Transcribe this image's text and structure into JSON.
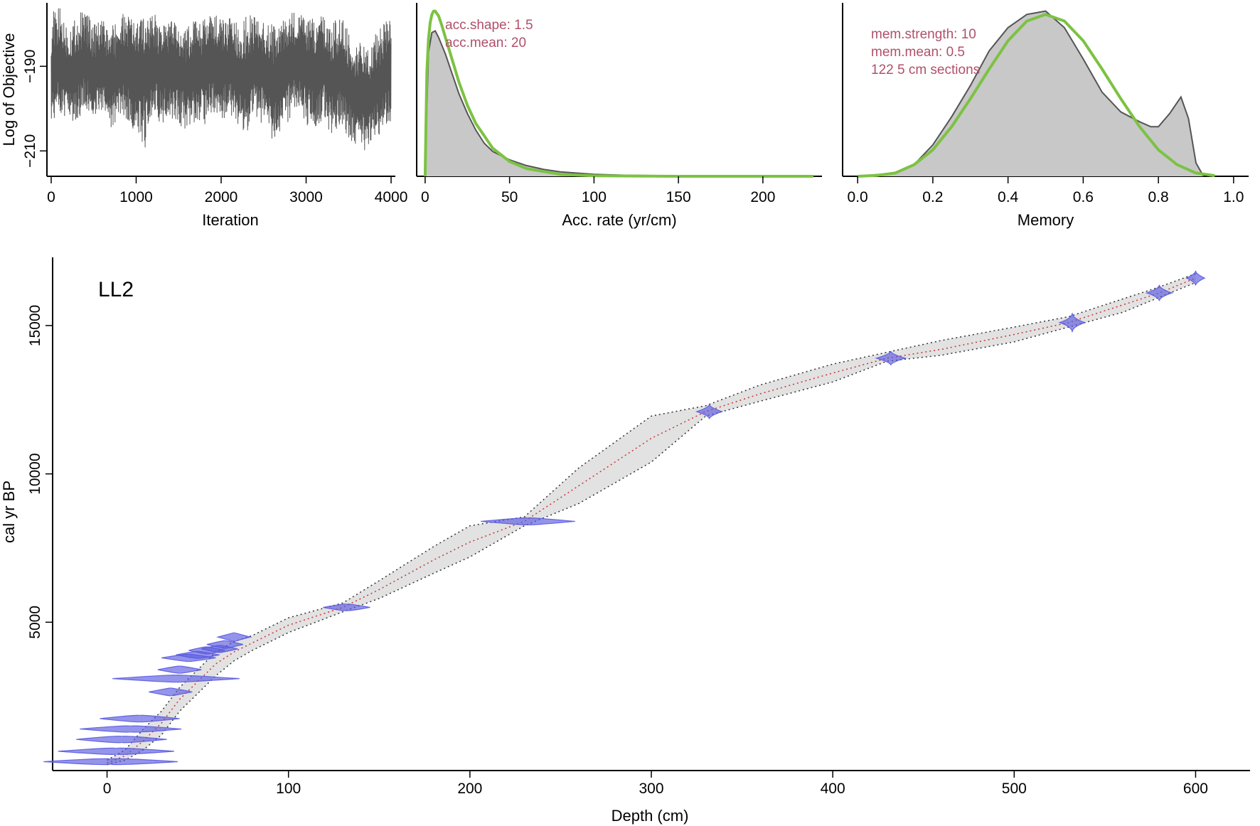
{
  "colors": {
    "trace": "#555555",
    "density_fill": "#c8c8c8",
    "density_line": "#555555",
    "prior": "#7cc242",
    "annotation": "#b0506a",
    "date_fill": "#5a5ae0",
    "median": "#cc3333",
    "envelope": "#333333",
    "band": "#999999"
  },
  "chart_data": [
    {
      "id": "iterations",
      "type": "line",
      "title": "",
      "xlabel": "Iteration",
      "ylabel": "Log of Objective",
      "xlim": [
        -50,
        4050
      ],
      "ylim": [
        -216,
        -175
      ],
      "xticks": [
        "0",
        "1000",
        "2000",
        "3000",
        "4000"
      ],
      "xtick_values": [
        0,
        1000,
        2000,
        3000,
        4000
      ],
      "yticks": [
        "−190",
        "−210"
      ],
      "ytick_values": [
        -190,
        -210
      ],
      "series": [
        {
          "x": [
            0,
            100,
            200,
            300,
            400,
            500,
            600,
            700,
            800,
            900,
            1000,
            1100,
            1200,
            1300,
            1400,
            1500,
            1600,
            1700,
            1800,
            1900,
            2000,
            2100,
            2200,
            2300,
            2400,
            2500,
            2600,
            2700,
            2800,
            2900,
            3000,
            3100,
            3200,
            3300,
            3400,
            3500,
            3600,
            3700,
            3800,
            3900,
            4000
          ],
          "y": [
            -192,
            -190,
            -193,
            -191,
            -189,
            -192,
            -190,
            -194,
            -191,
            -190,
            -193,
            -191,
            -189,
            -192,
            -190,
            -191,
            -193,
            -190,
            -192,
            -189,
            -191,
            -190,
            -192,
            -193,
            -190,
            -191,
            -194,
            -192,
            -190,
            -189,
            -191,
            -192,
            -190,
            -193,
            -191,
            -195,
            -197,
            -198,
            -196,
            -193,
            -191
          ],
          "high": [
            -177,
            -176,
            -180,
            -178,
            -176,
            -180,
            -179,
            -181,
            -178,
            -177,
            -179,
            -178,
            -177,
            -180,
            -179,
            -180,
            -181,
            -178,
            -179,
            -177,
            -179,
            -178,
            -180,
            -178,
            -177,
            -179,
            -180,
            -179,
            -178,
            -176,
            -178,
            -179,
            -178,
            -180,
            -178,
            -181,
            -184,
            -185,
            -183,
            -179,
            -178
          ],
          "low": [
            -203,
            -201,
            -204,
            -203,
            -200,
            -203,
            -201,
            -205,
            -202,
            -203,
            -206,
            -210,
            -201,
            -204,
            -202,
            -204,
            -205,
            -203,
            -204,
            -201,
            -203,
            -202,
            -204,
            -206,
            -202,
            -204,
            -208,
            -205,
            -203,
            -201,
            -204,
            -205,
            -203,
            -206,
            -204,
            -207,
            -209,
            -210,
            -208,
            -205,
            -203
          ]
        }
      ]
    },
    {
      "id": "acc_rate",
      "type": "area",
      "title": "",
      "xlabel": "Acc. rate (yr/cm)",
      "ylabel": "",
      "xlim": [
        -5,
        235
      ],
      "ylim": [
        0,
        1.05
      ],
      "xticks": [
        "0",
        "50",
        "100",
        "150",
        "200"
      ],
      "xtick_values": [
        0,
        50,
        100,
        150,
        200
      ],
      "annotations": [
        "acc.shape:  1.5",
        "acc.mean:  20"
      ],
      "series": [
        {
          "name": "posterior",
          "x": [
            0,
            2,
            4,
            6,
            8,
            12,
            16,
            20,
            25,
            30,
            35,
            40,
            50,
            60,
            70,
            80,
            100,
            120,
            150,
            200,
            230
          ],
          "y": [
            0.05,
            0.75,
            0.87,
            0.88,
            0.84,
            0.74,
            0.62,
            0.5,
            0.38,
            0.28,
            0.2,
            0.15,
            0.1,
            0.065,
            0.042,
            0.027,
            0.012,
            0.006,
            0.002,
            0.0005,
            0.0002
          ]
        },
        {
          "name": "prior",
          "x": [
            0,
            1,
            2,
            3,
            4,
            5,
            6,
            8,
            10,
            12,
            15,
            20,
            25,
            30,
            40,
            50,
            60,
            80,
            100,
            150,
            230
          ],
          "y": [
            0.0,
            0.63,
            0.83,
            0.93,
            0.98,
            1.0,
            1.0,
            0.97,
            0.91,
            0.84,
            0.74,
            0.57,
            0.43,
            0.32,
            0.17,
            0.09,
            0.047,
            0.012,
            0.003,
            0.0001,
            0.0
          ]
        }
      ]
    },
    {
      "id": "memory",
      "type": "area",
      "title": "",
      "xlabel": "Memory",
      "ylabel": "",
      "xlim": [
        -0.04,
        1.04
      ],
      "ylim": [
        0,
        1.05
      ],
      "xticks": [
        "0.0",
        "0.2",
        "0.4",
        "0.6",
        "0.8",
        "1.0"
      ],
      "xtick_values": [
        0,
        0.2,
        0.4,
        0.6,
        0.8,
        1.0
      ],
      "annotations": [
        "mem.strength: 10",
        "mem.mean: 0.5",
        "122 5 cm sections"
      ],
      "series": [
        {
          "name": "posterior",
          "x": [
            0,
            0.1,
            0.15,
            0.2,
            0.25,
            0.3,
            0.35,
            0.4,
            0.45,
            0.5,
            0.55,
            0.6,
            0.65,
            0.7,
            0.75,
            0.78,
            0.8,
            0.83,
            0.86,
            0.88,
            0.9,
            0.92
          ],
          "y": [
            0,
            0.02,
            0.07,
            0.19,
            0.36,
            0.55,
            0.76,
            0.9,
            0.98,
            1.0,
            0.9,
            0.71,
            0.51,
            0.39,
            0.33,
            0.3,
            0.3,
            0.38,
            0.48,
            0.35,
            0.08,
            0.0
          ]
        },
        {
          "name": "prior",
          "x": [
            0,
            0.05,
            0.1,
            0.15,
            0.2,
            0.25,
            0.3,
            0.35,
            0.4,
            0.45,
            0.5,
            0.55,
            0.6,
            0.65,
            0.7,
            0.75,
            0.8,
            0.85,
            0.9,
            0.95
          ],
          "y": [
            0,
            0.005,
            0.02,
            0.07,
            0.16,
            0.3,
            0.47,
            0.65,
            0.82,
            0.94,
            0.98,
            0.94,
            0.82,
            0.65,
            0.47,
            0.3,
            0.16,
            0.07,
            0.02,
            0.004
          ]
        }
      ]
    },
    {
      "id": "age_depth",
      "type": "line",
      "title": "",
      "label": "LL2",
      "xlabel": "Depth (cm)",
      "ylabel": "cal yr BP",
      "xlim": [
        -30,
        630
      ],
      "ylim": [
        0,
        17300
      ],
      "xticks": [
        "0",
        "100",
        "200",
        "300",
        "400",
        "500",
        "600"
      ],
      "xtick_values": [
        0,
        100,
        200,
        300,
        400,
        500,
        600
      ],
      "yticks": [
        "5000",
        "10000",
        "15000"
      ],
      "ytick_values": [
        5000,
        10000,
        15000
      ],
      "model": {
        "depth": [
          0,
          10,
          20,
          30,
          40,
          50,
          60,
          70,
          80,
          100,
          130,
          150,
          180,
          200,
          230,
          260,
          300,
          330,
          360,
          400,
          430,
          460,
          500,
          530,
          560,
          580,
          600
        ],
        "median": [
          250,
          500,
          1000,
          1600,
          2400,
          3000,
          3600,
          4000,
          4300,
          4900,
          5500,
          6100,
          7100,
          7700,
          8400,
          9600,
          11200,
          12100,
          12700,
          13400,
          13900,
          14200,
          14700,
          15100,
          15700,
          16100,
          16600
        ],
        "lower": [
          200,
          350,
          700,
          1200,
          2000,
          2600,
          3200,
          3700,
          4050,
          4650,
          5350,
          5800,
          6650,
          7200,
          8250,
          9000,
          10400,
          11950,
          12450,
          13100,
          13800,
          14000,
          14450,
          14950,
          15450,
          15950,
          16450
        ],
        "upper": [
          350,
          700,
          1400,
          2000,
          2800,
          3400,
          4000,
          4350,
          4550,
          5150,
          5650,
          6400,
          7550,
          8250,
          8550,
          10200,
          11950,
          12300,
          13000,
          13700,
          14100,
          14500,
          14950,
          15300,
          15900,
          16300,
          16750
        ]
      },
      "dates": [
        {
          "depth": 2,
          "age": 300,
          "spread": 37,
          "height": 160
        },
        {
          "depth": 5,
          "age": 650,
          "spread": 32,
          "height": 190
        },
        {
          "depth": 8,
          "age": 1050,
          "spread": 25,
          "height": 200
        },
        {
          "depth": 13,
          "age": 1400,
          "spread": 28,
          "height": 190
        },
        {
          "depth": 18,
          "age": 1750,
          "spread": 22,
          "height": 210
        },
        {
          "depth": 35,
          "age": 2650,
          "spread": 12,
          "height": 260
        },
        {
          "depth": 38,
          "age": 3100,
          "spread": 35,
          "height": 230
        },
        {
          "depth": 40,
          "age": 3400,
          "spread": 12,
          "height": 230
        },
        {
          "depth": 45,
          "age": 3800,
          "spread": 15,
          "height": 240
        },
        {
          "depth": 50,
          "age": 3900,
          "spread": 12,
          "height": 230
        },
        {
          "depth": 55,
          "age": 4050,
          "spread": 10,
          "height": 230
        },
        {
          "depth": 62,
          "age": 4100,
          "spread": 10,
          "height": 240
        },
        {
          "depth": 65,
          "age": 4250,
          "spread": 10,
          "height": 260
        },
        {
          "depth": 70,
          "age": 4500,
          "spread": 9,
          "height": 300
        },
        {
          "depth": 132,
          "age": 5500,
          "spread": 13,
          "height": 200
        },
        {
          "depth": 232,
          "age": 8400,
          "spread": 26,
          "height": 230
        },
        {
          "depth": 332,
          "age": 12100,
          "spread": 7,
          "height": 500
        },
        {
          "depth": 432,
          "age": 13900,
          "spread": 8,
          "height": 480
        },
        {
          "depth": 532,
          "age": 15100,
          "spread": 7,
          "height": 650
        },
        {
          "depth": 580,
          "age": 16100,
          "spread": 7,
          "height": 550
        },
        {
          "depth": 600,
          "age": 16600,
          "spread": 5,
          "height": 500
        }
      ]
    }
  ]
}
